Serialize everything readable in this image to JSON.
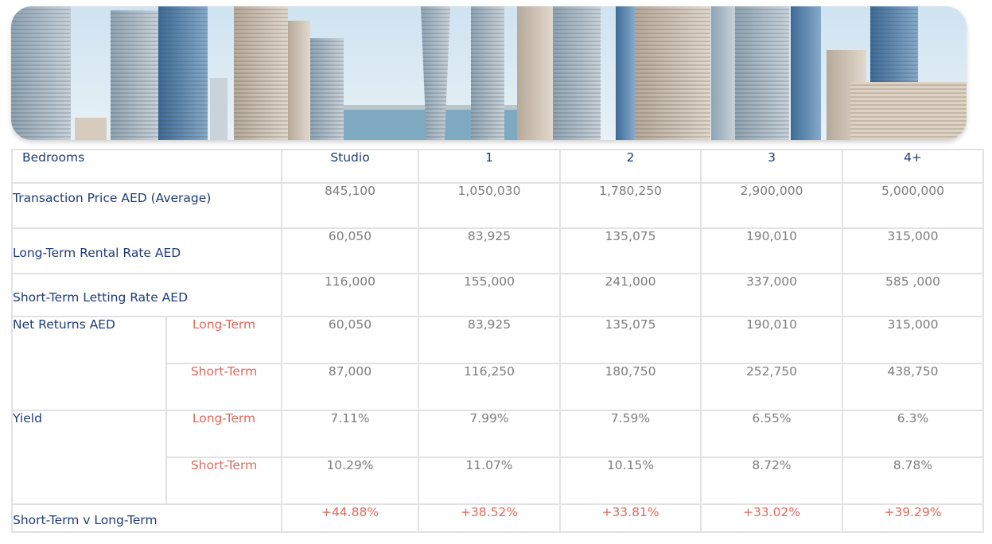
{
  "banner": {
    "alt": "Dubai Marina skyline"
  },
  "table": {
    "header": {
      "label": "Bedrooms",
      "cols": [
        "Studio",
        "1",
        "2",
        "3",
        "4+"
      ]
    },
    "transaction_price": {
      "label": "Transaction Price AED (Average)",
      "values": [
        "845,100",
        "1,050,030",
        "1,780,250",
        "2,900,000",
        "5,000,000"
      ]
    },
    "long_term_rental": {
      "label": "Long-Term Rental Rate AED",
      "values": [
        "60,050",
        "83,925",
        "135,075",
        "190,010",
        "315,000"
      ]
    },
    "short_term_letting": {
      "label": "Short-Term Letting Rate AED",
      "values": [
        "116,000",
        "155,000",
        "241,000",
        "337,000",
        "585 ,000"
      ]
    },
    "net_returns": {
      "label": "Net Returns AED",
      "long": {
        "label": "Long-Term",
        "values": [
          "60,050",
          "83,925",
          "135,075",
          "190,010",
          "315,000"
        ]
      },
      "short": {
        "label": "Short-Term",
        "values": [
          "87,000",
          "116,250",
          "180,750",
          "252,750",
          "438,750"
        ]
      }
    },
    "yield": {
      "label": "Yield",
      "long": {
        "label": "Long-Term",
        "values": [
          "7.11%",
          "7.99%",
          "7.59%",
          "6.55%",
          "6.3%"
        ]
      },
      "short": {
        "label": "Short-Term",
        "values": [
          "10.29%",
          "11.07%",
          "10.15%",
          "8.72%",
          "8.78%"
        ]
      }
    },
    "short_vs_long": {
      "label": "Short-Term v Long-Term",
      "values": [
        "+44.88%",
        "+38.52%",
        "+33.81%",
        "+33.02%",
        "+39.29%"
      ]
    }
  },
  "colors": {
    "label_blue": "#1f3b77",
    "accent_red": "#e06a5c",
    "value_gray": "#7d7d7d",
    "grid": "#e2e2e2"
  }
}
